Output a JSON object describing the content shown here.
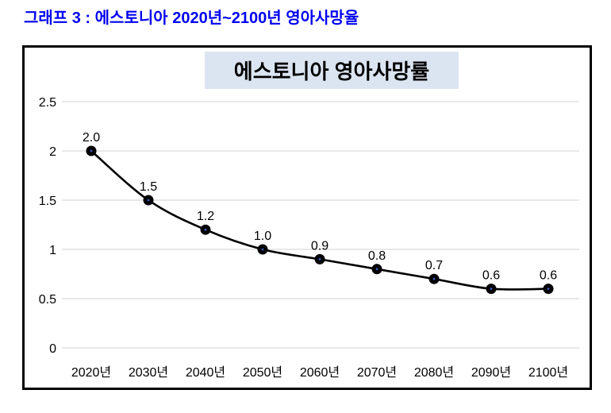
{
  "page": {
    "heading": "그래프 3 : 에스토니아 2020년~2100년 영아사망율"
  },
  "colors": {
    "heading_text": "#0000f2",
    "chart_title_bg": "#dbe5f1",
    "chart_title_text": "#000000",
    "box_border": "#000000",
    "gridline": "#d9d9d9",
    "line": "#000000",
    "marker_fill": "#000000",
    "marker_center": "#3a5bc0",
    "axis_text": "#000000",
    "data_label_text": "#000000"
  },
  "chart_data": {
    "type": "line",
    "title": "에스토니아 영아사망률",
    "categories": [
      "2020년",
      "2030년",
      "2040년",
      "2050년",
      "2060년",
      "2070년",
      "2080년",
      "2090년",
      "2100년"
    ],
    "values": [
      2.0,
      1.5,
      1.2,
      1.0,
      0.9,
      0.8,
      0.7,
      0.6,
      0.6
    ],
    "data_labels": [
      "2.0",
      "1.5",
      "1.2",
      "1.0",
      "0.9",
      "0.8",
      "0.7",
      "0.6",
      "0.6"
    ],
    "xlabel": "",
    "ylabel": "",
    "ylim": [
      0,
      2.5
    ],
    "y_tick_step": 0.5,
    "y_tick_labels": [
      "0",
      "0.5",
      "1",
      "1.5",
      "2",
      "2.5"
    ],
    "grid": true,
    "legend": "none",
    "smoothed_line": true,
    "marker_style": "filled-circle"
  }
}
